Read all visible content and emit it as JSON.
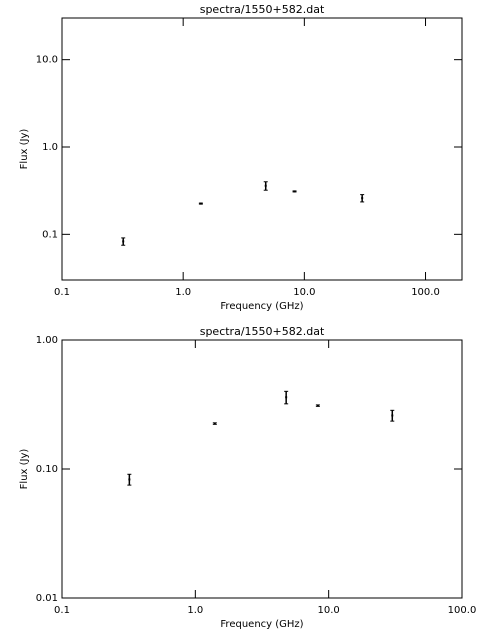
{
  "chart_data": [
    {
      "type": "scatter",
      "title": "spectra/1550+582.dat",
      "x_label": "Frequency (GHz)",
      "y_label": "Flux (Jy)",
      "x": [
        0.32,
        1.4,
        4.8,
        8.3,
        30
      ],
      "values": [
        0.083,
        0.225,
        0.36,
        0.31,
        0.26
      ],
      "errors": [
        0.008,
        0.003,
        0.04,
        0.004,
        0.025
      ],
      "color": "#000000",
      "xlog": true,
      "ylog": true,
      "xlim": [
        0.1,
        200
      ],
      "xticks": [
        {
          "value": 0.1,
          "label": "0.1"
        },
        {
          "value": 1,
          "label": "1.0"
        },
        {
          "value": 10,
          "label": "10.0"
        },
        {
          "value": 100,
          "label": "100.0"
        }
      ],
      "ylim": [
        0.03,
        30
      ],
      "yticks": [
        {
          "value": 0.1,
          "label": "0.1"
        },
        {
          "value": 1,
          "label": "1.0"
        },
        {
          "value": 10,
          "label": "10.0"
        }
      ]
    },
    {
      "type": "scatter",
      "title": "spectra/1550+582.dat",
      "x_label": "Frequency (GHz)",
      "y_label": "Flux (Jy)",
      "x": [
        0.32,
        1.4,
        4.8,
        8.3,
        30
      ],
      "values": [
        0.083,
        0.225,
        0.36,
        0.31,
        0.26
      ],
      "errors": [
        0.008,
        0.003,
        0.04,
        0.004,
        0.025
      ],
      "color": "#000000",
      "xlog": true,
      "ylog": true,
      "xlim": [
        0.1,
        100
      ],
      "xticks": [
        {
          "value": 0.1,
          "label": "0.1"
        },
        {
          "value": 1,
          "label": "1.0"
        },
        {
          "value": 10,
          "label": "10.0"
        },
        {
          "value": 100,
          "label": "100.0"
        }
      ],
      "ylim": [
        0.01,
        1
      ],
      "yticks": [
        {
          "value": 0.01,
          "label": "0.01"
        },
        {
          "value": 0.1,
          "label": "0.10"
        },
        {
          "value": 1,
          "label": "1.00"
        }
      ]
    }
  ]
}
